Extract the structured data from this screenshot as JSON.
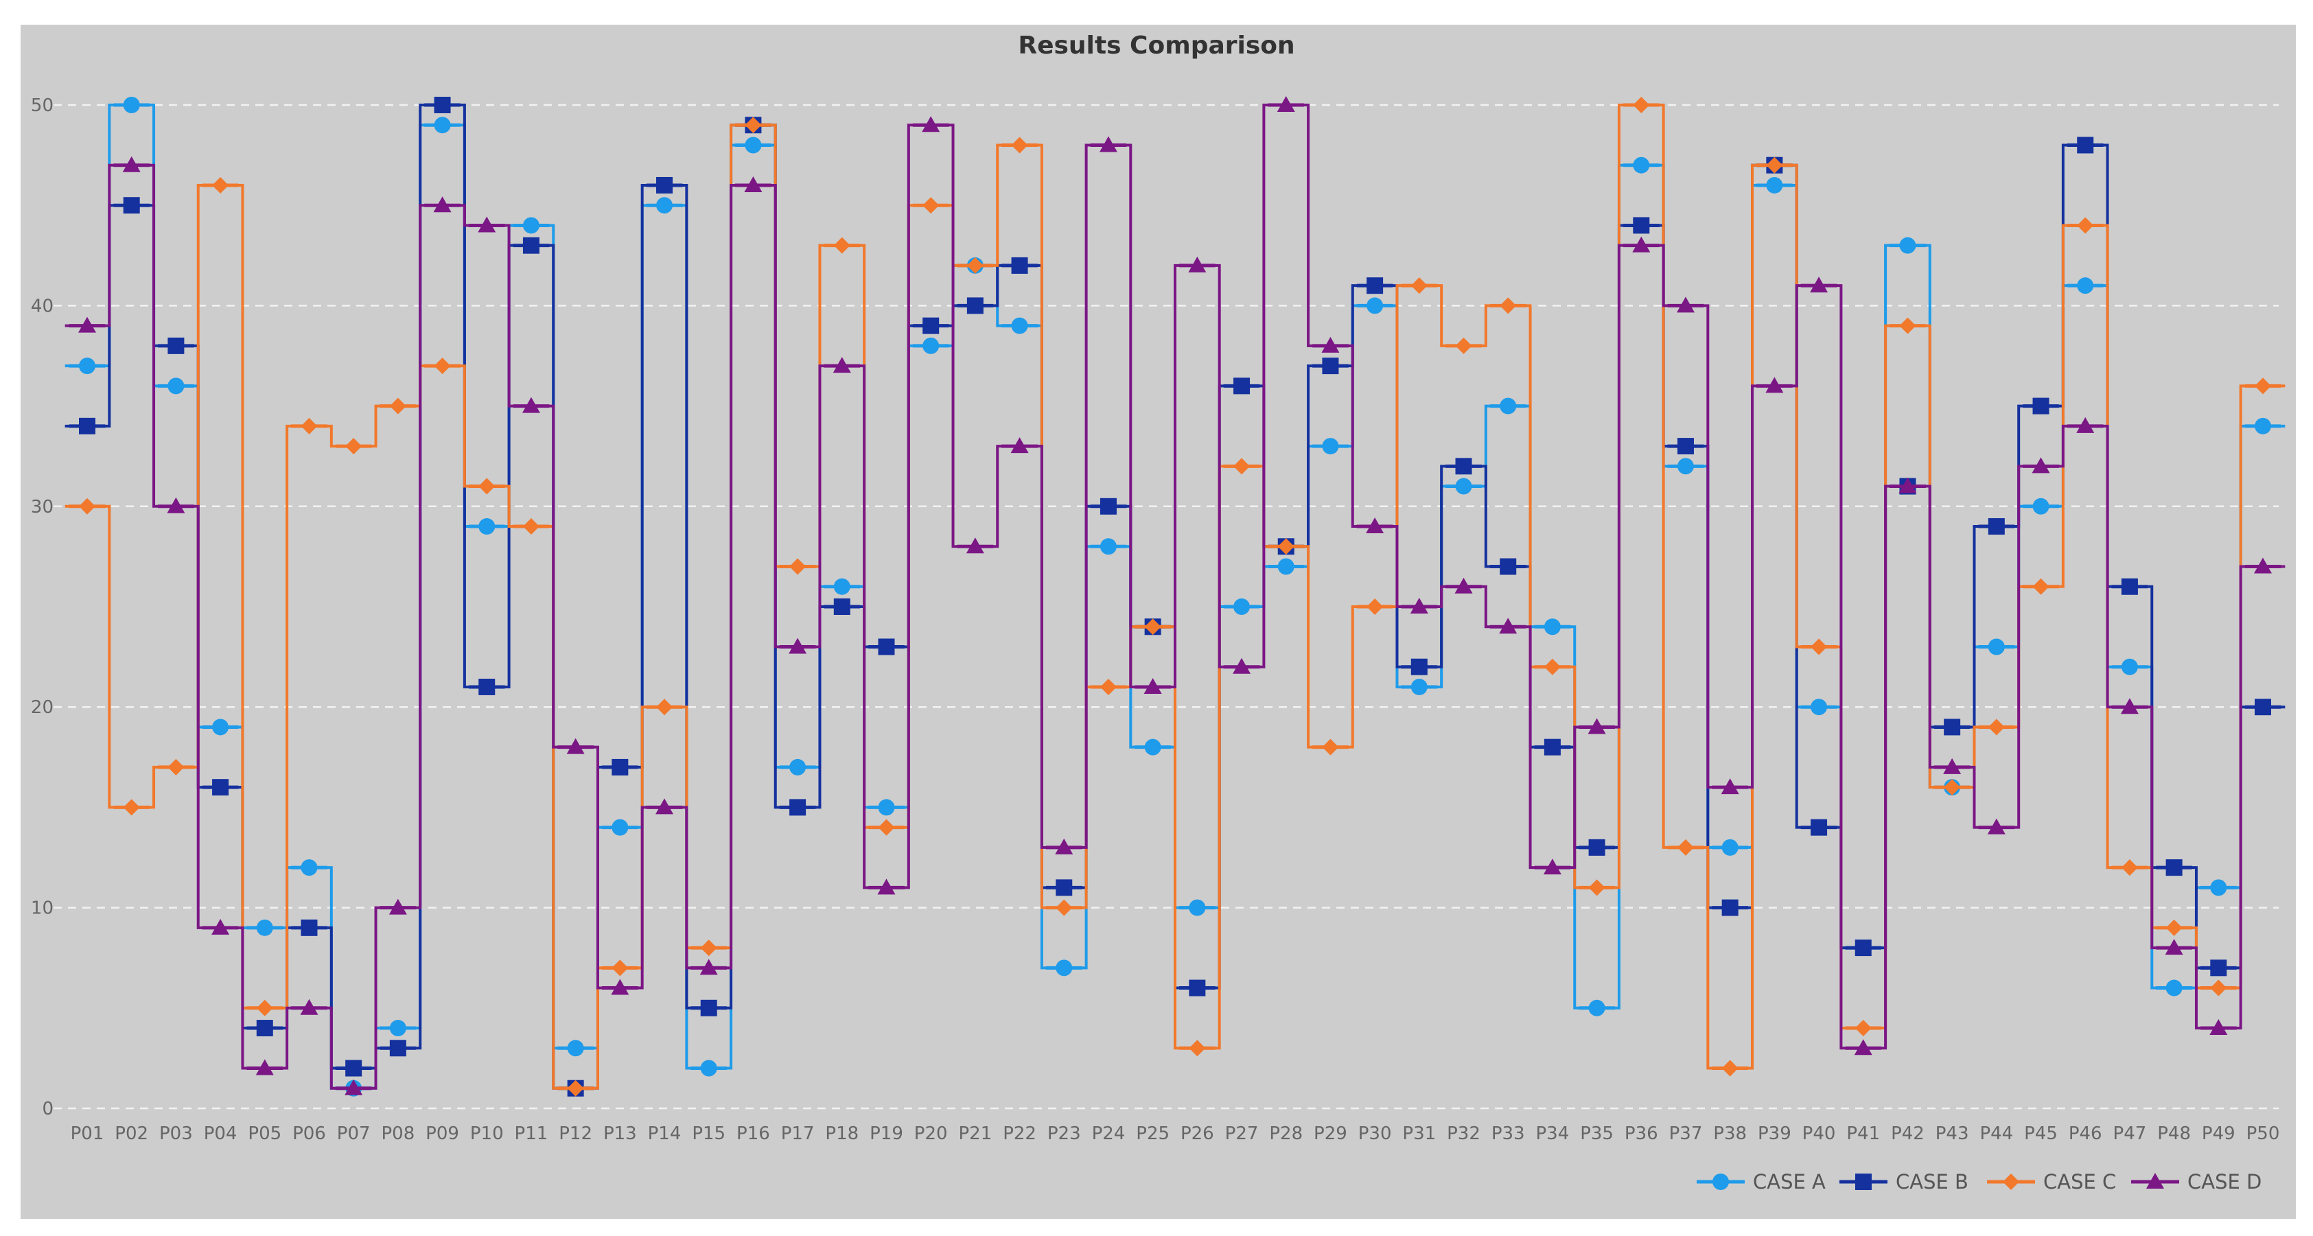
{
  "chart_data": {
    "type": "line",
    "subtype": "step",
    "title": "Results Comparison",
    "xlabel": "",
    "ylabel": "",
    "ylim": [
      0,
      50
    ],
    "yticks": [
      0,
      10,
      20,
      30,
      40,
      50
    ],
    "grid": "horizontal-dashed",
    "legend_position": "bottom-right",
    "categories": [
      "P01",
      "P02",
      "P03",
      "P04",
      "P05",
      "P06",
      "P07",
      "P08",
      "P09",
      "P10",
      "P11",
      "P12",
      "P13",
      "P14",
      "P15",
      "P16",
      "P17",
      "P18",
      "P19",
      "P20",
      "P21",
      "P22",
      "P23",
      "P24",
      "P25",
      "P26",
      "P27",
      "P28",
      "P29",
      "P30",
      "P31",
      "P32",
      "P33",
      "P34",
      "P35",
      "P36",
      "P37",
      "P38",
      "P39",
      "P40",
      "P41",
      "P42",
      "P43",
      "P44",
      "P45",
      "P46",
      "P47",
      "P48",
      "P49",
      "P50"
    ],
    "series": [
      {
        "name": "CASE A",
        "color": "#1E9BEA",
        "marker": "circle",
        "values": [
          37,
          50,
          36,
          19,
          9,
          12,
          1,
          4,
          49,
          29,
          44,
          3,
          14,
          45,
          2,
          48,
          17,
          26,
          15,
          38,
          42,
          39,
          7,
          28,
          18,
          10,
          25,
          27,
          33,
          40,
          21,
          31,
          35,
          24,
          5,
          47,
          32,
          13,
          46,
          20,
          8,
          43,
          16,
          23,
          30,
          41,
          22,
          6,
          11,
          34
        ]
      },
      {
        "name": "CASE B",
        "color": "#14319E",
        "marker": "square",
        "values": [
          34,
          45,
          38,
          16,
          4,
          9,
          2,
          3,
          50,
          21,
          43,
          1,
          17,
          46,
          5,
          49,
          15,
          25,
          23,
          39,
          40,
          42,
          11,
          30,
          24,
          6,
          36,
          28,
          37,
          41,
          22,
          32,
          27,
          18,
          13,
          44,
          33,
          10,
          47,
          14,
          8,
          31,
          19,
          29,
          35,
          48,
          26,
          12,
          7,
          20
        ]
      },
      {
        "name": "CASE C",
        "color": "#F2782B",
        "marker": "diamond",
        "values": [
          30,
          15,
          17,
          46,
          5,
          34,
          33,
          35,
          37,
          31,
          29,
          1,
          7,
          20,
          8,
          49,
          27,
          43,
          14,
          45,
          42,
          48,
          10,
          21,
          24,
          3,
          32,
          28,
          18,
          25,
          41,
          38,
          40,
          22,
          11,
          50,
          13,
          2,
          47,
          23,
          4,
          39,
          16,
          19,
          26,
          44,
          12,
          9,
          6,
          36
        ]
      },
      {
        "name": "CASE D",
        "color": "#7B1685",
        "marker": "triangle",
        "values": [
          39,
          47,
          30,
          9,
          2,
          5,
          1,
          10,
          45,
          44,
          35,
          18,
          6,
          15,
          7,
          46,
          23,
          37,
          11,
          49,
          28,
          33,
          13,
          48,
          21,
          42,
          22,
          50,
          38,
          29,
          25,
          26,
          24,
          12,
          19,
          43,
          40,
          16,
          36,
          41,
          3,
          31,
          17,
          14,
          32,
          34,
          20,
          8,
          4,
          27
        ]
      }
    ]
  }
}
